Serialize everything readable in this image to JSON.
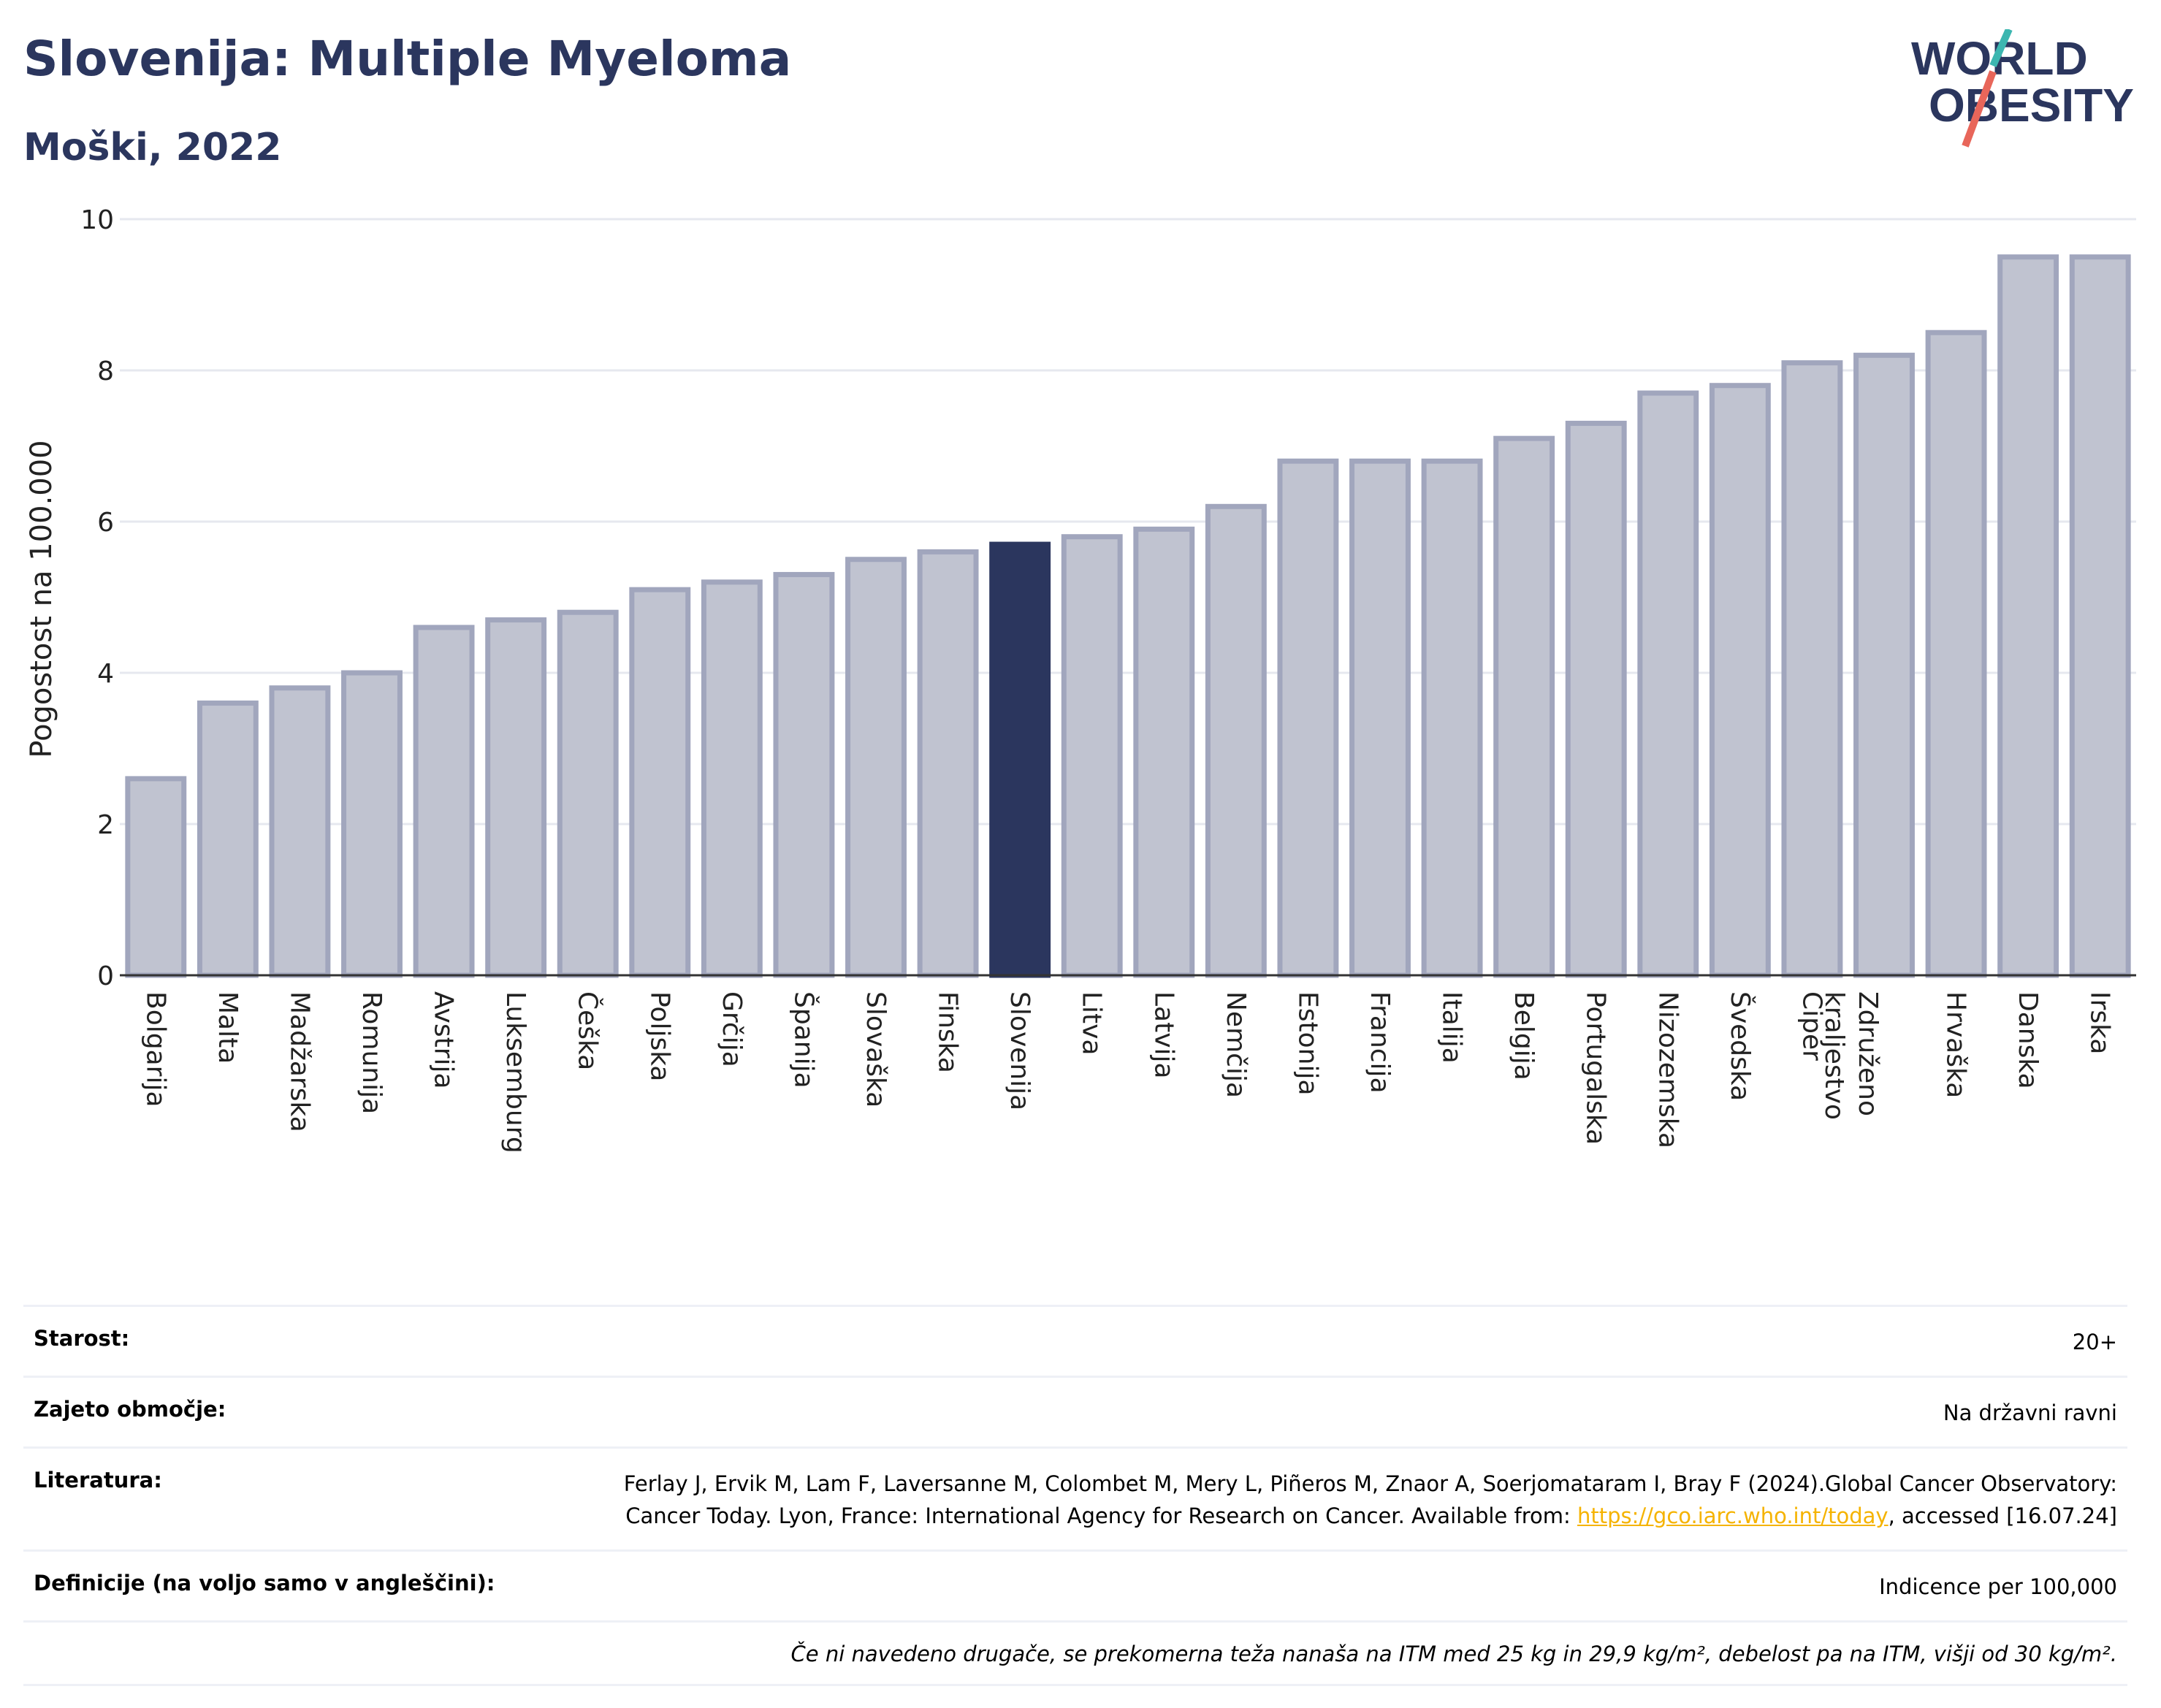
{
  "header": {
    "title": "Slovenija: Multiple Myeloma",
    "subtitle": "Moški, 2022"
  },
  "logo": {
    "line1": "WORLD",
    "line2": "OBESITY"
  },
  "colors": {
    "bar": "#c0c3d0",
    "bar_edge": "#a1a6bd",
    "highlight": "#2b365e",
    "title": "#2b365e",
    "link": "#f5b300"
  },
  "chart_data": {
    "type": "bar",
    "ylabel": "Pogostost na 100.000",
    "ylim": [
      0,
      10
    ],
    "yticks": [
      0,
      2,
      4,
      6,
      8,
      10
    ],
    "highlight": "Slovenija",
    "categories": [
      "Bolgarija",
      "Malta",
      "Madžarska",
      "Romunija",
      "Avstrija",
      "Luksemburg",
      "Češka",
      "Poljska",
      "Grčija",
      "Španija",
      "Slovaška",
      "Finska",
      "Slovenija",
      "Litva",
      "Latvija",
      "Nemčija",
      "Estonija",
      "Francija",
      "Italija",
      "Belgija",
      "Portugalska",
      "Nizozemska",
      "Švedska",
      "Ciper",
      "Združeno kraljestvo",
      "Hrvaška",
      "Danska",
      "Irska"
    ],
    "values": [
      2.6,
      3.6,
      3.8,
      4.0,
      4.6,
      4.7,
      4.8,
      5.1,
      5.2,
      5.3,
      5.5,
      5.6,
      5.7,
      5.8,
      5.9,
      6.2,
      6.8,
      6.8,
      6.8,
      7.1,
      7.3,
      7.7,
      7.8,
      8.1,
      8.2,
      8.5,
      9.5,
      9.5
    ]
  },
  "info": {
    "age_label": "Starost:",
    "age_value": "20+",
    "coverage_label": "Zajeto območje:",
    "coverage_value": "Na državni ravni",
    "lit_label": "Literatura:",
    "lit_text_1": "Ferlay J, Ervik M, Lam F, Laversanne M, Colombet M, Mery L, Piñeros M, Znaor A, Soerjomataram I, Bray F (2024).Global Cancer Observatory: Cancer Today. Lyon, France: International Agency for Research on Cancer. Available from: ",
    "lit_link": "https://gco.iarc.who.int/today",
    "lit_text_2": ", accessed [16.07.24]",
    "def_label": "Definicije (na voljo samo v angleščini):",
    "def_value": "Indicence per 100,000",
    "note": "Če ni navedeno drugače, se prekomerna teža nanaša na ITM med 25 kg in 29,9 kg/m², debelost pa na ITM, višji od 30 kg/m²."
  }
}
